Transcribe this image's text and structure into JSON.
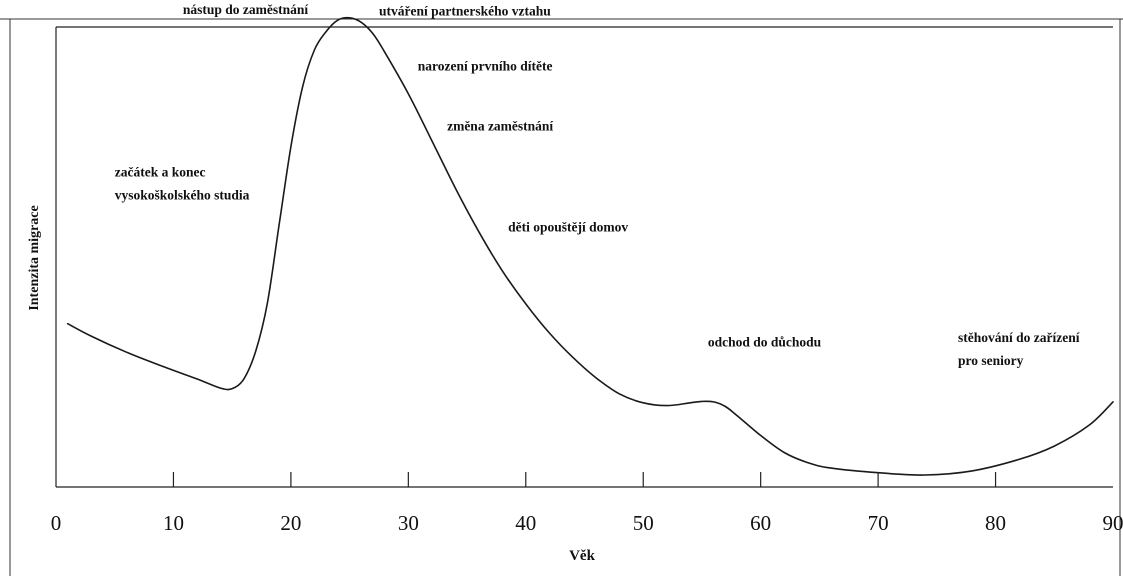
{
  "chart_data": {
    "type": "line",
    "title": "",
    "xlabel": "Věk",
    "ylabel": "Intenzita migrace",
    "xlim": [
      0,
      90
    ],
    "xticks": [
      0,
      10,
      20,
      30,
      40,
      50,
      60,
      70,
      80,
      90
    ],
    "x_tick_labels": [
      "0",
      "10",
      "20",
      "30",
      "40",
      "50",
      "60",
      "70",
      "80",
      "90"
    ],
    "y_axis_values_shown": false,
    "ylim": [
      0,
      100
    ],
    "grid": false,
    "legend": "none",
    "line_color": "#1a1a1a",
    "series": [
      {
        "x": [
          1,
          3,
          6,
          9,
          12,
          14,
          15,
          16,
          17,
          18,
          19,
          20,
          21,
          22,
          23,
          24,
          25,
          26,
          27,
          28,
          30,
          32,
          34,
          36,
          38,
          40,
          42,
          44,
          46,
          48,
          50,
          52,
          54,
          55,
          56,
          57,
          58,
          60,
          62,
          64,
          66,
          70,
          74,
          78,
          82,
          85,
          88,
          90
        ],
        "y": [
          35.5,
          32.8,
          29.3,
          26.3,
          23.5,
          21.5,
          21.4,
          23.5,
          29.5,
          40,
          57,
          74,
          87,
          95,
          99,
          101.5,
          102,
          101,
          98.5,
          94.5,
          85.5,
          75.3,
          65,
          55.5,
          47,
          39.8,
          33.5,
          28.2,
          23.7,
          20.2,
          18.3,
          17.7,
          18.3,
          18.6,
          18.5,
          17.5,
          15.5,
          11.2,
          7.5,
          5.3,
          4.1,
          3.1,
          2.6,
          3.5,
          6,
          8.9,
          13.5,
          18.5
        ]
      }
    ],
    "annotations": [
      {
        "text": "začátek a konec",
        "x": 5,
        "y": 67.5
      },
      {
        "text": "vysokoškolského studia",
        "x": 5,
        "y": 62.5
      },
      {
        "text": "nástup do zaměstnání",
        "x": 10.8,
        "y": 102.8
      },
      {
        "text": "utváření partnerského vztahu",
        "x": 27.5,
        "y": 102.5
      },
      {
        "text": "narození prvního dítěte",
        "x": 30.8,
        "y": 90.5
      },
      {
        "text": "změna zaměstnání",
        "x": 33.3,
        "y": 77.5
      },
      {
        "text": "děti opouštějí domov",
        "x": 38.5,
        "y": 55.5
      },
      {
        "text": "odchod do důchodu",
        "x": 55.5,
        "y": 30.5
      },
      {
        "text": "stěhování do zařízení",
        "x": 76.8,
        "y": 31.5
      },
      {
        "text": "pro seniory",
        "x": 76.8,
        "y": 26.5
      }
    ]
  }
}
